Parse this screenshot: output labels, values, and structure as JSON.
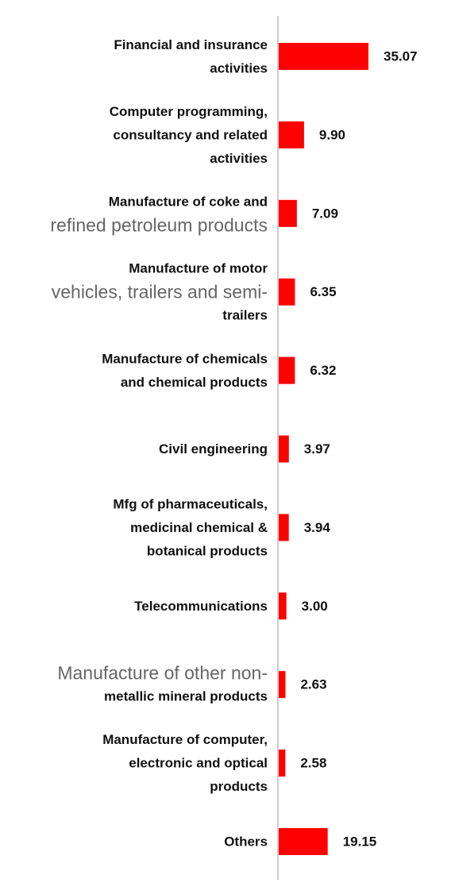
{
  "chart_data": {
    "type": "bar",
    "orientation": "horizontal",
    "categories": [
      "Financial and insurance activities",
      "Computer programming, consultancy and related activities",
      "Manufacture of coke and refined petroleum products",
      "Manufacture of motor vehicles, trailers and semi-trailers",
      "Manufacture of chemicals and chemical products",
      "Civil engineering",
      "Mfg of pharmaceuticals, medicinal chemical & botanical products",
      "Telecommunications",
      "Manufacture of other non-metallic mineral products",
      "Manufacture of computer, electronic and optical products",
      "Others"
    ],
    "label_lines": [
      [
        {
          "text": "Financial and insurance"
        },
        {
          "text": "activities"
        }
      ],
      [
        {
          "text": "Computer programming,"
        },
        {
          "text": "consultancy and related"
        },
        {
          "text": "activities"
        }
      ],
      [
        {
          "text": "Manufacture of coke and"
        },
        {
          "text": "refined petroleum products",
          "light": true
        }
      ],
      [
        {
          "text": "Manufacture of motor"
        },
        {
          "text": "vehicles, trailers and semi-",
          "light": true
        },
        {
          "text": "trailers"
        }
      ],
      [
        {
          "text": "Manufacture of chemicals"
        },
        {
          "text": "and chemical products"
        }
      ],
      [
        {
          "text": "Civil engineering"
        }
      ],
      [
        {
          "text": "Mfg of pharmaceuticals,"
        },
        {
          "text": "medicinal chemical &"
        },
        {
          "text": "botanical products"
        }
      ],
      [
        {
          "text": "Telecommunications"
        }
      ],
      [
        {
          "text": "Manufacture of other non-",
          "light": true
        },
        {
          "text": "metallic mineral products"
        }
      ],
      [
        {
          "text": "Manufacture of computer,"
        },
        {
          "text": "electronic and optical"
        },
        {
          "text": "products"
        }
      ],
      [
        {
          "text": "Others"
        }
      ]
    ],
    "values": [
      35.07,
      9.9,
      7.09,
      6.35,
      6.32,
      3.97,
      3.94,
      3.0,
      2.63,
      2.58,
      19.15
    ],
    "value_labels": [
      "35.07",
      "9.90",
      "7.09",
      "6.35",
      "6.32",
      "3.97",
      "3.94",
      "3.00",
      "2.63",
      "2.58",
      "19.15"
    ],
    "xlim": [
      0,
      35.07
    ],
    "title": "",
    "xlabel": "",
    "ylabel": "",
    "grid": false,
    "legend": "none",
    "colors": {
      "bar": "#ff0000",
      "axis": "#cccccc",
      "text": "#111111",
      "light_text": "#666666"
    }
  }
}
